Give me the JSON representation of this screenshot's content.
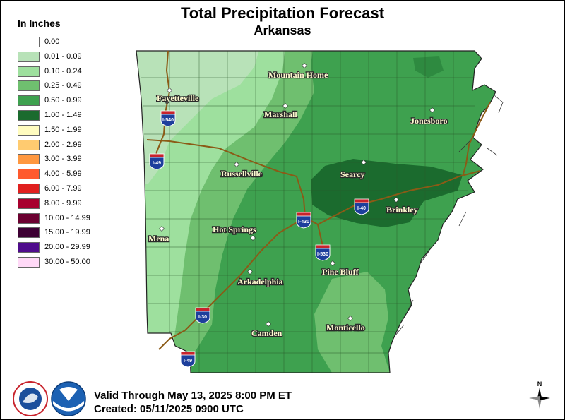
{
  "title": "Total Precipitation Forecast",
  "subtitle": "Arkansas",
  "legend": {
    "title": "In Inches",
    "items": [
      {
        "label": "0.00",
        "color": "#ffffff"
      },
      {
        "label": "0.01 - 0.09",
        "color": "#b8e2b8"
      },
      {
        "label": "0.10 - 0.24",
        "color": "#9ee09e"
      },
      {
        "label": "0.25 - 0.49",
        "color": "#6fbf6f"
      },
      {
        "label": "0.50 - 0.99",
        "color": "#3ea14f"
      },
      {
        "label": "1.00 - 1.49",
        "color": "#1b6b2e"
      },
      {
        "label": "1.50 - 1.99",
        "color": "#fffcbf"
      },
      {
        "label": "2.00 - 2.99",
        "color": "#ffcb70"
      },
      {
        "label": "3.00 - 3.99",
        "color": "#ff9840"
      },
      {
        "label": "4.00 - 5.99",
        "color": "#ff5a2e"
      },
      {
        "label": "6.00 - 7.99",
        "color": "#e0201f"
      },
      {
        "label": "8.00 - 9.99",
        "color": "#a8002e"
      },
      {
        "label": "10.00 - 14.99",
        "color": "#6b0030"
      },
      {
        "label": "15.00 - 19.99",
        "color": "#3d0033"
      },
      {
        "label": "20.00 - 29.99",
        "color": "#4f0c8c"
      },
      {
        "label": "30.00 - 50.00",
        "color": "#ffd9f7"
      }
    ]
  },
  "cities": [
    "Mountain Home",
    "Fayetteville",
    "Marshall",
    "Jonesboro",
    "Searcy",
    "Russellville",
    "Brinkley",
    "Hot Springs",
    "Mena",
    "Pine Bluff",
    "Arkadelphia",
    "Camden",
    "Monticello"
  ],
  "interstates": [
    "I-540",
    "I-49",
    "I-430",
    "I-40",
    "I-530",
    "I-30",
    "I-49"
  ],
  "footer": {
    "valid": "Valid Through May 13, 2025 8:00 PM ET",
    "created": "Created: 05/11/2025 0900 UTC"
  },
  "logos": [
    "NATIONAL WEATHER SERVICE",
    "NOAA"
  ],
  "north_arrow": "N"
}
